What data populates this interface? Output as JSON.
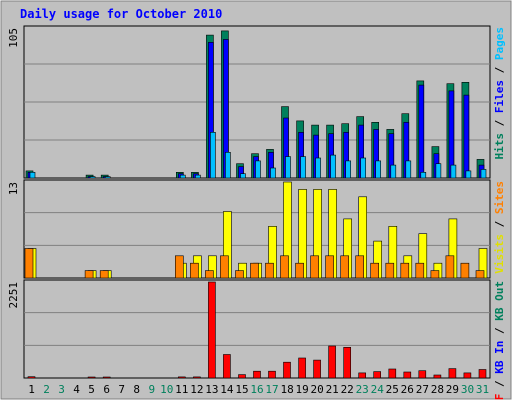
{
  "chart_data": {
    "type": "bar",
    "title": "Daily usage for October 2010",
    "colors": {
      "hits": "#00805c",
      "files": "#0000ff",
      "pages": "#00c0ff",
      "visits": "#ffff00",
      "sites": "#ff8000",
      "kb_in": "#0000ff",
      "kb_out": "#00805c",
      "kb_f": "#ff0000",
      "plot_bg": "#c0c0c0",
      "text_blue": "#0000ff"
    },
    "days": [
      {
        "label": "1",
        "weekend": false
      },
      {
        "label": "2",
        "weekend": true
      },
      {
        "label": "3",
        "weekend": true
      },
      {
        "label": "4",
        "weekend": false
      },
      {
        "label": "5",
        "weekend": false
      },
      {
        "label": "6",
        "weekend": false
      },
      {
        "label": "7",
        "weekend": false
      },
      {
        "label": "8",
        "weekend": false
      },
      {
        "label": "9",
        "weekend": true
      },
      {
        "label": "10",
        "weekend": true
      },
      {
        "label": "11",
        "weekend": false
      },
      {
        "label": "12",
        "weekend": false
      },
      {
        "label": "13",
        "weekend": false
      },
      {
        "label": "14",
        "weekend": false
      },
      {
        "label": "15",
        "weekend": false
      },
      {
        "label": "16",
        "weekend": true
      },
      {
        "label": "17",
        "weekend": true
      },
      {
        "label": "18",
        "weekend": false
      },
      {
        "label": "19",
        "weekend": false
      },
      {
        "label": "20",
        "weekend": false
      },
      {
        "label": "21",
        "weekend": false
      },
      {
        "label": "22",
        "weekend": false
      },
      {
        "label": "23",
        "weekend": true
      },
      {
        "label": "24",
        "weekend": true
      },
      {
        "label": "25",
        "weekend": false
      },
      {
        "label": "26",
        "weekend": false
      },
      {
        "label": "27",
        "weekend": false
      },
      {
        "label": "28",
        "weekend": false
      },
      {
        "label": "29",
        "weekend": false
      },
      {
        "label": "30",
        "weekend": true
      },
      {
        "label": "31",
        "weekend": true
      }
    ],
    "panels": [
      {
        "ymax": 105,
        "ymax_label": "105",
        "right_label_parts": [
          {
            "text": "Hits",
            "color": "#00805c"
          },
          {
            "text": " / ",
            "color": "#000000"
          },
          {
            "text": "Files",
            "color": "#0000ff"
          },
          {
            "text": " / ",
            "color": "#000000"
          },
          {
            "text": "Pages",
            "color": "#00c0ff"
          }
        ],
        "series": [
          {
            "key": "hits",
            "color": "#00805c",
            "values": [
              5,
              0,
              0,
              0,
              2,
              2,
              0,
              0,
              0,
              0,
              4,
              4,
              100,
              103,
              10,
              17,
              20,
              50,
              40,
              37,
              37,
              38,
              43,
              39,
              34,
              45,
              68,
              22,
              66,
              67,
              13
            ]
          },
          {
            "key": "files",
            "color": "#0000ff",
            "values": [
              4,
              0,
              0,
              0,
              1,
              1,
              0,
              0,
              0,
              0,
              3,
              3,
              95,
              97,
              8,
              15,
              18,
              42,
              32,
              30,
              31,
              32,
              37,
              34,
              31,
              39,
              65,
              17,
              61,
              58,
              9
            ]
          },
          {
            "key": "pages",
            "color": "#00c0ff",
            "values": [
              4,
              0,
              0,
              0,
              1,
              1,
              0,
              0,
              0,
              0,
              2,
              2,
              32,
              18,
              3,
              12,
              7,
              15,
              15,
              14,
              16,
              12,
              14,
              12,
              9,
              12,
              4,
              10,
              9,
              5,
              6
            ]
          }
        ]
      },
      {
        "ymax": 13,
        "ymax_label": "13",
        "right_label_parts": [
          {
            "text": "Visits",
            "color": "#e0e000"
          },
          {
            "text": " / ",
            "color": "#000000"
          },
          {
            "text": "Sites",
            "color": "#ff8000"
          }
        ],
        "series": [
          {
            "key": "visits",
            "color": "#ffff00",
            "values": [
              4,
              0,
              0,
              0,
              1,
              1,
              0,
              0,
              0,
              0,
              2,
              3,
              3,
              9,
              2,
              2,
              7,
              13,
              12,
              12,
              12,
              8,
              11,
              5,
              7,
              3,
              6,
              2,
              8,
              0,
              4
            ]
          },
          {
            "key": "sites",
            "color": "#ff8000",
            "values": [
              4,
              0,
              0,
              0,
              1,
              1,
              0,
              0,
              0,
              0,
              3,
              2,
              1,
              3,
              1,
              2,
              2,
              3,
              2,
              3,
              3,
              3,
              3,
              2,
              2,
              2,
              2,
              1,
              3,
              2,
              1
            ]
          }
        ]
      },
      {
        "ymax": 2251,
        "ymax_label": "2251",
        "right_label_parts": [
          {
            "text": "KB F",
            "color": "#ff0000"
          },
          {
            "text": " / ",
            "color": "#000000"
          },
          {
            "text": "KB In",
            "color": "#0000ff"
          },
          {
            "text": " / ",
            "color": "#000000"
          },
          {
            "text": "KB Out",
            "color": "#00805c"
          }
        ],
        "series": [
          {
            "key": "kb_f",
            "color": "#ff0000",
            "values": [
              30,
              0,
              0,
              0,
              20,
              20,
              0,
              0,
              0,
              0,
              25,
              25,
              2251,
              550,
              80,
              160,
              160,
              370,
              470,
              420,
              750,
              720,
              120,
              150,
              210,
              140,
              170,
              70,
              220,
              120,
              200
            ]
          }
        ]
      }
    ]
  }
}
